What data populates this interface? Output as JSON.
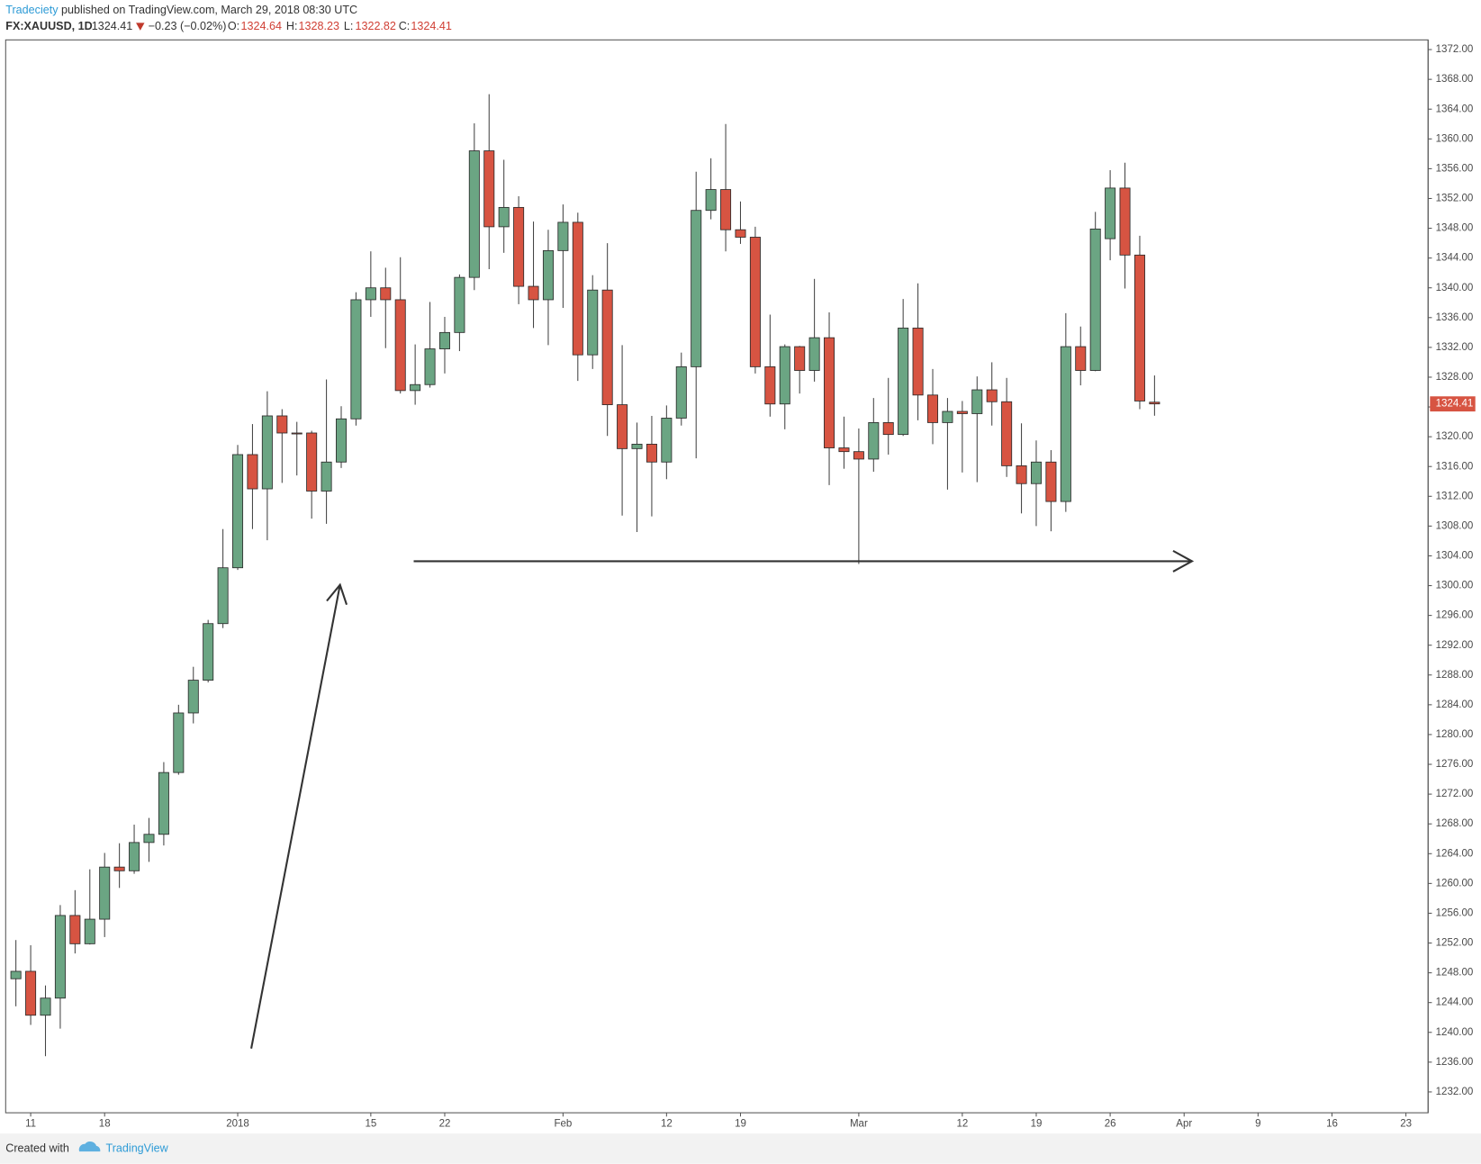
{
  "header": {
    "publisher": "Tradeciety",
    "published": "published on TradingView.com, March 29, 2018 08:30 UTC",
    "symbol": "FX:XAUUSD, 1D",
    "last": "1324.41",
    "change": "−0.23 (−0.02%)",
    "open_label": "O:",
    "open": "1324.64",
    "high_label": "H:",
    "high": "1328.23",
    "low_label": "L:",
    "low": "1322.82",
    "close_label": "C:",
    "close": "1324.41"
  },
  "footer": {
    "created": "Created with",
    "brand": "TradingView"
  },
  "chart_data": {
    "type": "candlestick",
    "up_color": "#6ba583",
    "down_color": "#d75442",
    "categories": [
      null,
      "11",
      null,
      null,
      null,
      null,
      "18",
      null,
      null,
      null,
      null,
      null,
      null,
      null,
      null,
      "2018",
      null,
      null,
      null,
      null,
      null,
      null,
      null,
      null,
      "15",
      null,
      null,
      null,
      null,
      "22",
      null,
      null,
      null,
      null,
      null,
      null,
      null,
      "Feb",
      null,
      null,
      null,
      null,
      null,
      null,
      "12",
      null,
      null,
      null,
      null,
      "19",
      null,
      null,
      null,
      null,
      null,
      null,
      null,
      "Mar",
      null,
      null,
      null,
      null,
      null,
      null,
      "12",
      null,
      null,
      null,
      null,
      "19",
      null,
      null,
      null,
      null,
      "26",
      null,
      null,
      null,
      null,
      "Apr",
      null,
      null,
      null,
      null,
      "9",
      null,
      null,
      null,
      null,
      "16",
      null,
      null,
      null,
      null,
      "23",
      null
    ],
    "open": [
      1247.2,
      1248.2,
      1242.3,
      1244.6,
      1255.7,
      1251.9,
      1255.2,
      1262.2,
      1261.7,
      1265.5,
      1266.6,
      1274.9,
      1282.9,
      1287.3,
      1294.9,
      1302.4,
      1317.6,
      1313.0,
      1322.8,
      1320.5,
      1320.5,
      1312.7,
      1316.6,
      1322.4,
      1338.4,
      1340.0,
      1338.4,
      1326.2,
      1327.0,
      1331.8,
      1334.0,
      1341.4,
      1358.4,
      1348.2,
      1350.8,
      1340.2,
      1338.4,
      1345.0,
      1348.8,
      1331.0,
      1339.7,
      1324.3,
      1318.4,
      1319.0,
      1316.6,
      1322.5,
      1329.4,
      1350.4,
      1353.2,
      1347.8,
      1346.8,
      1329.4,
      1324.4,
      1332.1,
      1328.9,
      1333.3,
      1318.5,
      1318.0,
      1317.0,
      1321.9,
      1320.3,
      1334.6,
      1325.6,
      1321.9,
      1323.4,
      1323.1,
      1326.3,
      1324.7,
      1316.1,
      1313.7,
      1316.6,
      1311.3,
      1332.1,
      1328.9,
      1346.6,
      1353.4,
      1344.4,
      1324.64,
      null,
      null,
      null,
      null,
      null,
      null,
      null,
      null,
      null,
      null,
      null,
      null,
      null,
      null,
      null,
      null,
      null,
      null
    ],
    "high": [
      1252.4,
      1251.7,
      1246.3,
      1257.1,
      1259.1,
      1261.9,
      1264.1,
      1265.4,
      1267.9,
      1268.8,
      1276.3,
      1284.0,
      1289.1,
      1295.4,
      1307.6,
      1318.9,
      1321.7,
      1326.1,
      1323.7,
      1322.0,
      1320.8,
      1327.7,
      1324.1,
      1339.4,
      1344.9,
      1342.7,
      1344.1,
      1332.4,
      1338.1,
      1336.1,
      1341.8,
      1362.1,
      1366.0,
      1357.2,
      1352.3,
      1348.9,
      1347.8,
      1351.2,
      1350.1,
      1341.7,
      1346.0,
      1332.3,
      1321.9,
      1322.8,
      1324.2,
      1331.3,
      1355.6,
      1357.4,
      1362.0,
      1351.6,
      1348.2,
      1336.4,
      1332.4,
      1332.2,
      1341.2,
      1336.7,
      1322.7,
      1321.1,
      1325.2,
      1327.9,
      1338.5,
      1340.6,
      1329.1,
      1325.2,
      1324.8,
      1328.1,
      1330.0,
      1327.9,
      1321.8,
      1319.5,
      1318.2,
      1336.6,
      1334.8,
      1350.2,
      1355.8,
      1356.8,
      1347.0,
      1328.23,
      null,
      null,
      null,
      null,
      null,
      null,
      null,
      null,
      null,
      null,
      null,
      null,
      null,
      null,
      null,
      null,
      null,
      null
    ],
    "low": [
      1243.5,
      1241.0,
      1236.8,
      1240.5,
      1250.6,
      1251.8,
      1252.8,
      1259.4,
      1261.3,
      1262.9,
      1265.1,
      1274.6,
      1281.5,
      1287.0,
      1294.3,
      1302.1,
      1307.6,
      1306.1,
      1313.8,
      1314.8,
      1309.0,
      1308.3,
      1315.8,
      1321.5,
      1336.1,
      1331.9,
      1325.8,
      1324.3,
      1326.6,
      1328.5,
      1331.5,
      1339.7,
      1342.5,
      1344.7,
      1337.8,
      1334.6,
      1332.3,
      1337.3,
      1327.5,
      1329.1,
      1320.1,
      1309.4,
      1307.2,
      1309.3,
      1314.3,
      1321.5,
      1317.1,
      1349.2,
      1344.9,
      1345.9,
      1328.5,
      1322.7,
      1321.0,
      1325.8,
      1327.4,
      1313.5,
      1315.7,
      1302.9,
      1315.3,
      1317.6,
      1320.1,
      1322.2,
      1319.0,
      1312.9,
      1315.2,
      1313.9,
      1321.5,
      1314.6,
      1309.7,
      1308.0,
      1307.3,
      1309.9,
      1326.9,
      1328.8,
      1343.7,
      1339.9,
      1323.7,
      1322.82,
      null,
      null,
      null,
      null,
      null,
      null,
      null,
      null,
      null,
      null,
      null,
      null,
      null,
      null,
      null,
      null,
      null,
      null
    ],
    "close": [
      1248.2,
      1242.3,
      1244.6,
      1255.7,
      1251.9,
      1255.2,
      1262.2,
      1261.7,
      1265.5,
      1266.6,
      1274.9,
      1282.9,
      1287.3,
      1294.9,
      1302.4,
      1317.6,
      1313.0,
      1322.8,
      1320.5,
      1320.4,
      1312.7,
      1316.6,
      1322.4,
      1338.4,
      1340.0,
      1338.4,
      1326.2,
      1327.0,
      1331.8,
      1334.0,
      1341.4,
      1358.4,
      1348.2,
      1350.8,
      1340.2,
      1338.4,
      1345.0,
      1348.8,
      1331.0,
      1339.7,
      1324.3,
      1318.4,
      1319.0,
      1316.6,
      1322.5,
      1329.4,
      1350.4,
      1353.2,
      1347.8,
      1346.8,
      1329.4,
      1324.4,
      1332.1,
      1328.9,
      1333.3,
      1318.5,
      1318.0,
      1317.0,
      1321.9,
      1320.3,
      1334.6,
      1325.6,
      1321.9,
      1323.4,
      1323.1,
      1326.3,
      1324.7,
      1316.1,
      1313.7,
      1316.6,
      1311.3,
      1332.1,
      1328.9,
      1347.9,
      1353.4,
      1344.4,
      1324.8,
      1324.41,
      null,
      null,
      null,
      null,
      null,
      null,
      null,
      null,
      null,
      null,
      null,
      null,
      null,
      null,
      null,
      null,
      null,
      null
    ],
    "ylim": [
      1229.2,
      1373.3
    ],
    "yticks": [
      {
        "value": 1232,
        "label": "1232.00"
      },
      {
        "value": 1236,
        "label": "1236.00"
      },
      {
        "value": 1240,
        "label": "1240.00"
      },
      {
        "value": 1244,
        "label": "1244.00"
      },
      {
        "value": 1248,
        "label": "1248.00"
      },
      {
        "value": 1252,
        "label": "1252.00"
      },
      {
        "value": 1256,
        "label": "1256.00"
      },
      {
        "value": 1260,
        "label": "1260.00"
      },
      {
        "value": 1264,
        "label": "1264.00"
      },
      {
        "value": 1268,
        "label": "1268.00"
      },
      {
        "value": 1272,
        "label": "1272.00"
      },
      {
        "value": 1276,
        "label": "1276.00"
      },
      {
        "value": 1280,
        "label": "1280.00"
      },
      {
        "value": 1284,
        "label": "1284.00"
      },
      {
        "value": 1288,
        "label": "1288.00"
      },
      {
        "value": 1292,
        "label": "1292.00"
      },
      {
        "value": 1296,
        "label": "1296.00"
      },
      {
        "value": 1300,
        "label": "1300.00"
      },
      {
        "value": 1304,
        "label": "1304.00"
      },
      {
        "value": 1308,
        "label": "1308.00"
      },
      {
        "value": 1312,
        "label": "1312.00"
      },
      {
        "value": 1316,
        "label": "1316.00"
      },
      {
        "value": 1320,
        "label": "1320.00"
      },
      {
        "value": 1324,
        "label": "1324.00"
      },
      {
        "value": 1328,
        "label": "1328.00"
      },
      {
        "value": 1332,
        "label": "1332.00"
      },
      {
        "value": 1336,
        "label": "1336.00"
      },
      {
        "value": 1340,
        "label": "1340.00"
      },
      {
        "value": 1344,
        "label": "1344.00"
      },
      {
        "value": 1348,
        "label": "1348.00"
      },
      {
        "value": 1352,
        "label": "1352.00"
      },
      {
        "value": 1356,
        "label": "1356.00"
      },
      {
        "value": 1360,
        "label": "1360.00"
      },
      {
        "value": 1364,
        "label": "1364.00"
      },
      {
        "value": 1368,
        "label": "1368.00"
      },
      {
        "value": 1372,
        "label": "1372.00"
      }
    ]
  }
}
